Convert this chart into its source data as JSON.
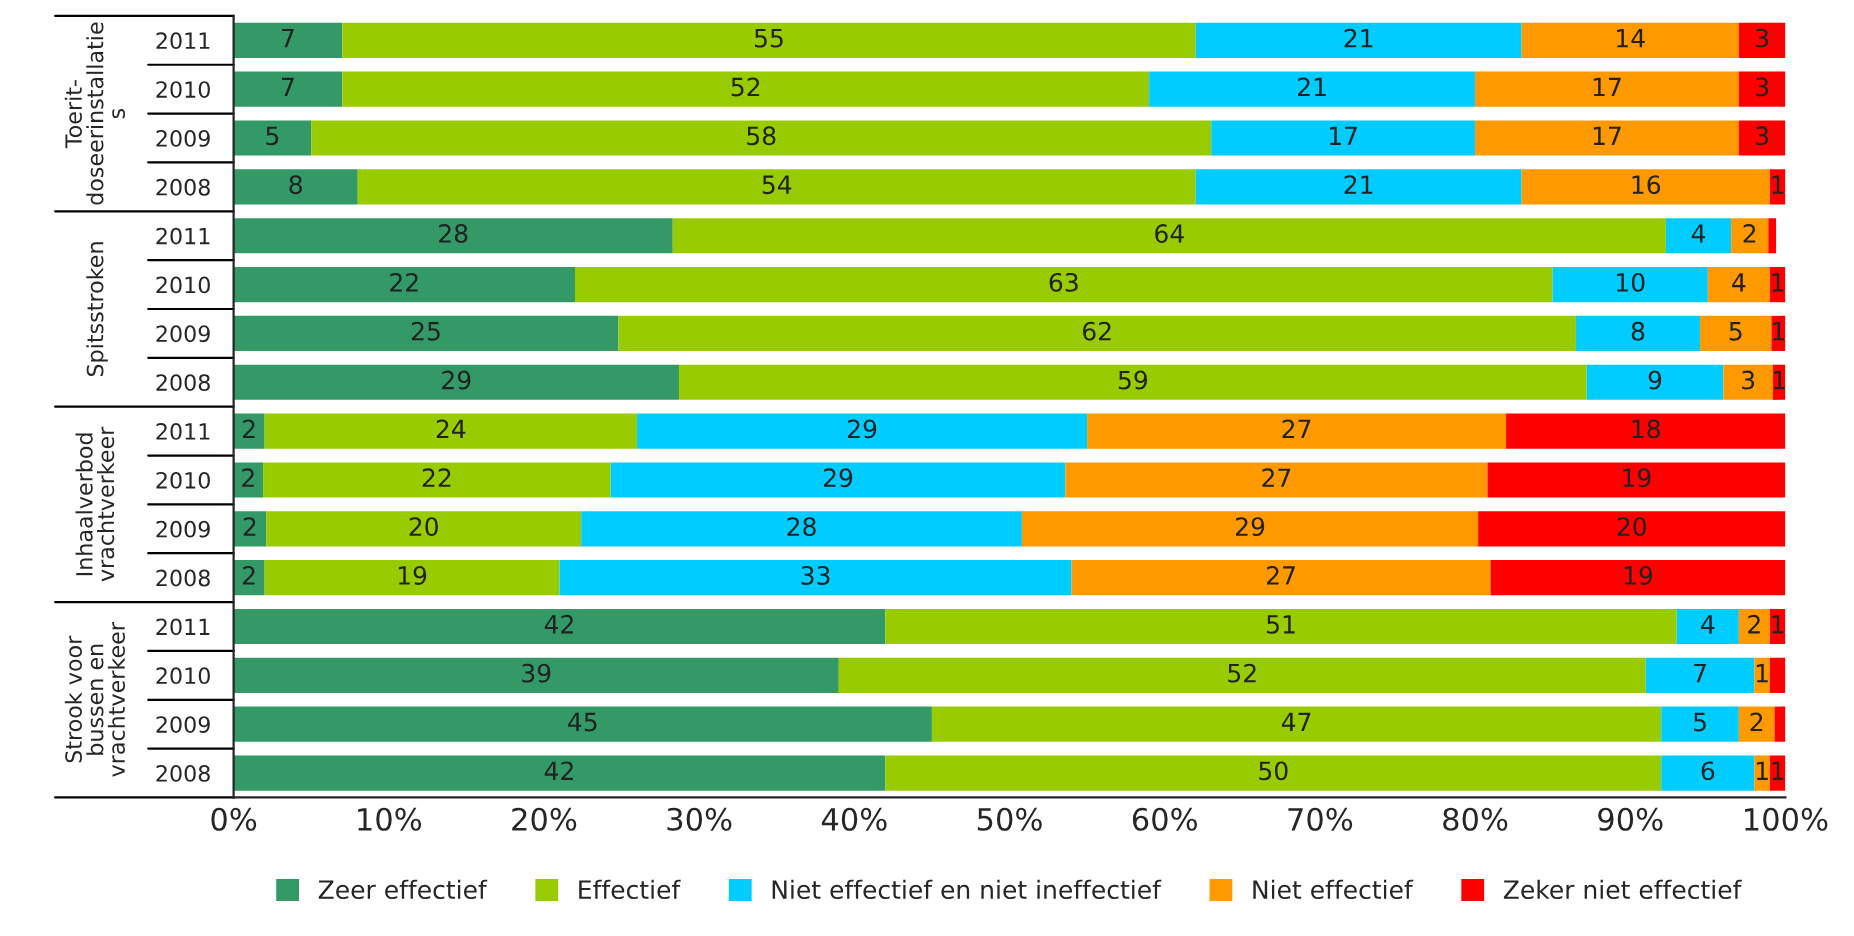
{
  "chart_data": {
    "type": "bar",
    "orientation": "horizontal",
    "stacked": true,
    "grid": false,
    "legend": "bottom",
    "categories": [
      "2011",
      "2010",
      "2009",
      "2008",
      "2011",
      "2010",
      "2009",
      "2008",
      "2011",
      "2010",
      "2009",
      "2008",
      "2011",
      "2010",
      "2009",
      "2008"
    ],
    "annotations": [
      "Toerit-\ndoseerinstallatie\ns",
      "Spitsstroken",
      "Inhaalverbod\nvrachtverkeer",
      "Strook voor\nbussen en\nvrachtverkeer"
    ],
    "xlim": [
      0,
      100
    ],
    "xticks": [
      {
        "value": 0,
        "label": "0%"
      },
      {
        "value": 10,
        "label": "10%"
      },
      {
        "value": 20,
        "label": "20%"
      },
      {
        "value": 30,
        "label": "30%"
      },
      {
        "value": 40,
        "label": "40%"
      },
      {
        "value": 50,
        "label": "50%"
      },
      {
        "value": 60,
        "label": "60%"
      },
      {
        "value": 70,
        "label": "70%"
      },
      {
        "value": 80,
        "label": "80%"
      },
      {
        "value": 90,
        "label": "90%"
      },
      {
        "value": 100,
        "label": "100%"
      }
    ],
    "series": [
      {
        "name": "Zeer effectief",
        "color": "#339966",
        "values": [
          7,
          7,
          5,
          8,
          28.3,
          22,
          24.8,
          28.7,
          2,
          1.9,
          2.1,
          2,
          42,
          39,
          45,
          42
        ],
        "value_labels": [
          "7",
          "7",
          "5",
          "8",
          "28",
          "22",
          "25",
          "29",
          "2",
          "2",
          "2",
          "2",
          "42",
          "39",
          "45",
          "42"
        ]
      },
      {
        "name": "Effectief",
        "color": "#99cc00",
        "values": [
          55,
          52,
          58,
          54,
          64,
          63,
          61.7,
          58.5,
          24,
          22.4,
          20.3,
          19,
          51,
          52,
          47,
          50
        ],
        "value_labels": [
          "55",
          "52",
          "58",
          "54",
          "64",
          "63",
          "62",
          "59",
          "24",
          "22",
          "20",
          "19",
          "51",
          "52",
          "47",
          "50"
        ]
      },
      {
        "name": "Niet effectief en niet ineffectief",
        "color": "#00ccff",
        "values": [
          21,
          21,
          17,
          21,
          4.2,
          10,
          8,
          8.8,
          29,
          29.3,
          28.4,
          33,
          4,
          7,
          5,
          6
        ],
        "value_labels": [
          "21",
          "21",
          "17",
          "21",
          "4",
          "10",
          "8",
          "9",
          "29",
          "29",
          "28",
          "33",
          "4",
          "7",
          "5",
          "6"
        ]
      },
      {
        "name": "Niet effectief",
        "color": "#ff9900",
        "values": [
          14,
          17,
          17,
          16,
          2.4,
          4,
          4.6,
          3.2,
          27,
          27.2,
          29.4,
          27,
          2,
          1,
          2.3,
          1
        ],
        "value_labels": [
          "14",
          "17",
          "17",
          "16",
          "2",
          "4",
          "5",
          "3",
          "27",
          "27",
          "29",
          "27",
          "2",
          "1",
          "2",
          "1"
        ]
      },
      {
        "name": "Zeker niet effectief",
        "color": "#ff0000",
        "values": [
          3,
          3,
          3,
          1,
          0.5,
          1,
          0.9,
          0.8,
          18,
          19.2,
          19.8,
          19,
          1,
          1,
          0.7,
          1
        ],
        "value_labels": [
          "3",
          "3",
          "3",
          "1",
          null,
          "1",
          "1",
          "1",
          "18",
          "19",
          "20",
          "19",
          "1",
          null,
          null,
          "1"
        ]
      }
    ]
  }
}
